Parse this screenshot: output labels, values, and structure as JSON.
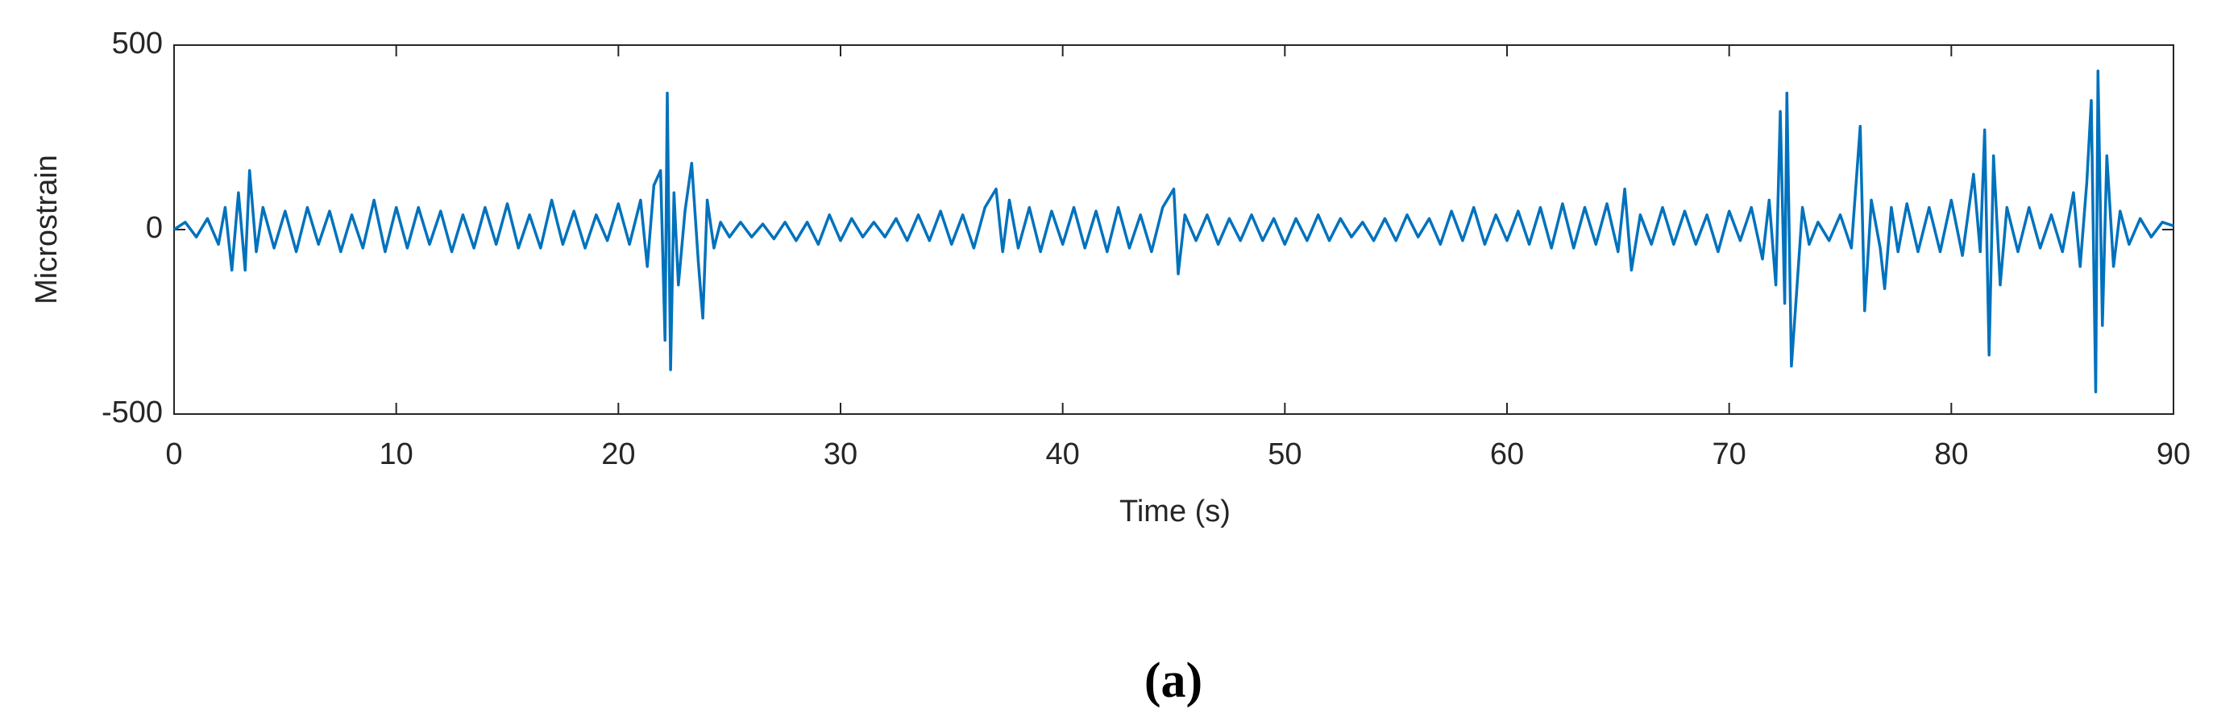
{
  "chart_data": {
    "type": "line",
    "xlabel": "Time (s)",
    "ylabel": "Microstrain",
    "annotation": "(a)",
    "xlim": [
      0,
      90
    ],
    "xticks": [
      0,
      10,
      20,
      30,
      40,
      50,
      60,
      70,
      80,
      90
    ],
    "ylim": [
      -500,
      500
    ],
    "yticks": [
      -500,
      0,
      500
    ],
    "series": [
      {
        "color": "#0072bd",
        "x": [
          0,
          0.5,
          1,
          1.5,
          2,
          2.3,
          2.6,
          2.9,
          3.2,
          3.4,
          3.7,
          4,
          4.5,
          5,
          5.5,
          6,
          6.5,
          7,
          7.5,
          8,
          8.5,
          9,
          9.5,
          10,
          10.5,
          11,
          11.5,
          12,
          12.5,
          13,
          13.5,
          14,
          14.5,
          15,
          15.5,
          16,
          16.5,
          17,
          17.5,
          18,
          18.5,
          19,
          19.5,
          20,
          20.5,
          21,
          21.3,
          21.6,
          21.9,
          22.1,
          22.2,
          22.35,
          22.5,
          22.7,
          23,
          23.3,
          23.6,
          23.8,
          24,
          24.3,
          24.6,
          25,
          25.5,
          26,
          26.5,
          27,
          27.5,
          28,
          28.5,
          29,
          29.5,
          30,
          30.5,
          31,
          31.5,
          32,
          32.5,
          33,
          33.5,
          34,
          34.5,
          35,
          35.5,
          36,
          36.5,
          37,
          37.3,
          37.6,
          38,
          38.5,
          39,
          39.5,
          40,
          40.5,
          41,
          41.5,
          42,
          42.5,
          43,
          43.5,
          44,
          44.5,
          45,
          45.2,
          45.5,
          46,
          46.5,
          47,
          47.5,
          48,
          48.5,
          49,
          49.5,
          50,
          50.5,
          51,
          51.5,
          52,
          52.5,
          53,
          53.5,
          54,
          54.5,
          55,
          55.5,
          56,
          56.5,
          57,
          57.5,
          58,
          58.5,
          59,
          59.5,
          60,
          60.5,
          61,
          61.5,
          62,
          62.5,
          63,
          63.5,
          64,
          64.5,
          65,
          65.3,
          65.6,
          66,
          66.5,
          67,
          67.5,
          68,
          68.5,
          69,
          69.5,
          70,
          70.5,
          71,
          71.5,
          71.8,
          72.1,
          72.3,
          72.5,
          72.6,
          72.8,
          73,
          73.3,
          73.6,
          74,
          74.5,
          75,
          75.5,
          75.9,
          76.1,
          76.4,
          76.8,
          77,
          77.3,
          77.6,
          78,
          78.5,
          79,
          79.5,
          80,
          80.5,
          81,
          81.3,
          81.5,
          81.7,
          81.9,
          82.2,
          82.5,
          83,
          83.5,
          84,
          84.5,
          85,
          85.5,
          85.8,
          86.1,
          86.3,
          86.5,
          86.6,
          86.8,
          87,
          87.3,
          87.6,
          88,
          88.5,
          89,
          89.5,
          90
        ],
        "values": [
          0,
          20,
          -20,
          30,
          -40,
          60,
          -110,
          100,
          -110,
          160,
          -60,
          60,
          -50,
          50,
          -60,
          60,
          -40,
          50,
          -60,
          40,
          -50,
          80,
          -60,
          60,
          -50,
          60,
          -40,
          50,
          -60,
          40,
          -50,
          60,
          -40,
          70,
          -50,
          40,
          -50,
          80,
          -40,
          50,
          -50,
          40,
          -30,
          70,
          -40,
          80,
          -100,
          120,
          160,
          -300,
          370,
          -380,
          100,
          -150,
          50,
          180,
          -90,
          -240,
          80,
          -50,
          20,
          -20,
          20,
          -20,
          15,
          -25,
          20,
          -30,
          20,
          -40,
          40,
          -30,
          30,
          -20,
          20,
          -20,
          30,
          -30,
          40,
          -30,
          50,
          -40,
          40,
          -50,
          60,
          110,
          -60,
          80,
          -50,
          60,
          -60,
          50,
          -40,
          60,
          -50,
          50,
          -60,
          60,
          -50,
          40,
          -60,
          60,
          110,
          -120,
          40,
          -30,
          40,
          -40,
          30,
          -30,
          40,
          -30,
          30,
          -40,
          30,
          -30,
          40,
          -30,
          30,
          -20,
          20,
          -30,
          30,
          -30,
          40,
          -20,
          30,
          -40,
          50,
          -30,
          60,
          -40,
          40,
          -30,
          50,
          -40,
          60,
          -50,
          70,
          -50,
          60,
          -40,
          70,
          -60,
          110,
          -110,
          40,
          -40,
          60,
          -40,
          50,
          -40,
          40,
          -60,
          50,
          -30,
          60,
          -80,
          80,
          -150,
          320,
          -200,
          370,
          -370,
          -200,
          60,
          -40,
          20,
          -30,
          40,
          -50,
          280,
          -220,
          80,
          -50,
          -160,
          60,
          -60,
          70,
          -60,
          60,
          -60,
          80,
          -70,
          150,
          -60,
          270,
          -340,
          200,
          -150,
          60,
          -60,
          60,
          -50,
          40,
          -60,
          100,
          -100,
          130,
          350,
          -440,
          430,
          -260,
          200,
          -100,
          50,
          -40,
          30,
          -20,
          20,
          10
        ]
      }
    ]
  }
}
